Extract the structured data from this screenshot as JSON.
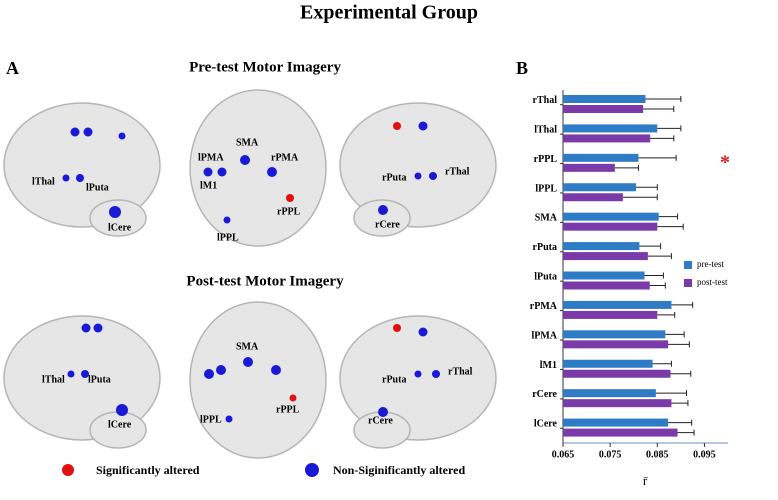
{
  "title": "Experimental Group",
  "panel_a": {
    "label": "A",
    "pre_title": "Pre-test Motor Imagery",
    "post_title": "Post-test Motor Imagery",
    "pre_left": [
      "lThal",
      "lPuta",
      "lCere"
    ],
    "pre_top": [
      "SMA",
      "lPMA",
      "rPMA",
      "lM1",
      "rPPL",
      "lPPL"
    ],
    "pre_right": [
      "rPuta",
      "rThal",
      "rCere"
    ],
    "post_left": [
      "lThal",
      "lPuta",
      "lCere"
    ],
    "post_top": [
      "SMA",
      "rPPL",
      "lPPL"
    ],
    "post_right": [
      "rPuta",
      "rThal",
      "rCere"
    ]
  },
  "legend": {
    "significant": "Significantly altered",
    "non_significant": "Non-Siginificantly altered"
  },
  "chart_data": {
    "type": "hbar",
    "label": "B",
    "xlabel": "r̄",
    "annotation": "*",
    "categories": [
      "rThal",
      "lThal",
      "rPPL",
      "lPPL",
      "SMA",
      "rPuta",
      "lPuta",
      "rPMA",
      "lPMA",
      "lM1",
      "rCere",
      "lCere"
    ],
    "series": [
      {
        "name": "pre-test",
        "color": "#2e7bc6",
        "values": [
          0.0825,
          0.085,
          0.081,
          0.0805,
          0.0853,
          0.0812,
          0.0823,
          0.088,
          0.0867,
          0.084,
          0.0847,
          0.0873
        ],
        "errors": [
          0.0075,
          0.005,
          0.008,
          0.0045,
          0.004,
          0.0045,
          0.004,
          0.0045,
          0.004,
          0.004,
          0.0065,
          0.005
        ]
      },
      {
        "name": "post-test",
        "color": "#7a3ba8",
        "values": [
          0.082,
          0.0835,
          0.076,
          0.0777,
          0.085,
          0.083,
          0.0834,
          0.085,
          0.0873,
          0.0878,
          0.088,
          0.0893
        ],
        "errors": [
          0.0065,
          0.005,
          0.005,
          0.0073,
          0.0055,
          0.005,
          0.0033,
          0.0037,
          0.0045,
          0.0043,
          0.0035,
          0.0035
        ]
      }
    ],
    "xlim": [
      0.065,
      0.1
    ],
    "xticks": [
      0.065,
      0.075,
      0.085,
      0.095
    ]
  }
}
